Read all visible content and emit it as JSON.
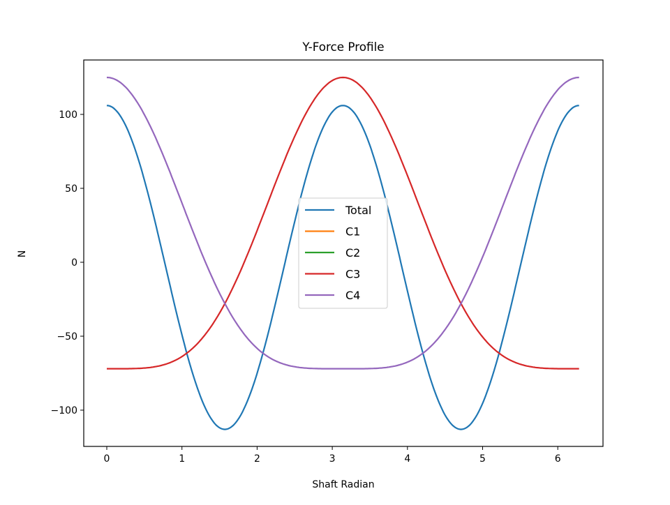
{
  "chart_data": {
    "type": "line",
    "title": "Y-Force Profile",
    "xlabel": "Shaft Radian",
    "ylabel": "N",
    "xlim": [
      -0.31,
      6.6
    ],
    "ylim": [
      -125,
      136
    ],
    "xticks": [
      0,
      1,
      2,
      3,
      4,
      5,
      6
    ],
    "xtick_labels": [
      "0",
      "1",
      "2",
      "3",
      "4",
      "5",
      "6"
    ],
    "yticks": [
      -100,
      -50,
      0,
      50,
      100
    ],
    "ytick_labels": [
      "−100",
      "−50",
      "0",
      "50",
      "100"
    ],
    "grid": false,
    "legend_position": "center",
    "x": [
      0,
      0.5,
      1.0,
      1.57,
      2.0,
      2.5,
      3.14,
      3.8,
      4.28,
      4.71,
      5.2,
      5.8,
      6.28
    ],
    "series": [
      {
        "name": "Total",
        "color": "#1f77b4",
        "values": [
          106,
          56,
          -49,
          -113,
          -75,
          27,
          106,
          22,
          -70,
          -113,
          -62,
          85,
          106
        ]
      },
      {
        "name": "C1",
        "color": "#ff7f0e",
        "values": []
      },
      {
        "name": "C2",
        "color": "#2ca02c",
        "values": []
      },
      {
        "name": "C3",
        "color": "#d62728",
        "values": [
          -72,
          -71,
          -63,
          -28,
          22,
          88,
          125,
          91,
          20,
          -28,
          -64,
          -71,
          -72
        ]
      },
      {
        "name": "C4",
        "color": "#9467bd",
        "values": [
          125,
          101,
          44,
          -28,
          -60,
          -71,
          -72,
          -70,
          -56,
          -28,
          30,
          106,
          125
        ]
      }
    ]
  }
}
